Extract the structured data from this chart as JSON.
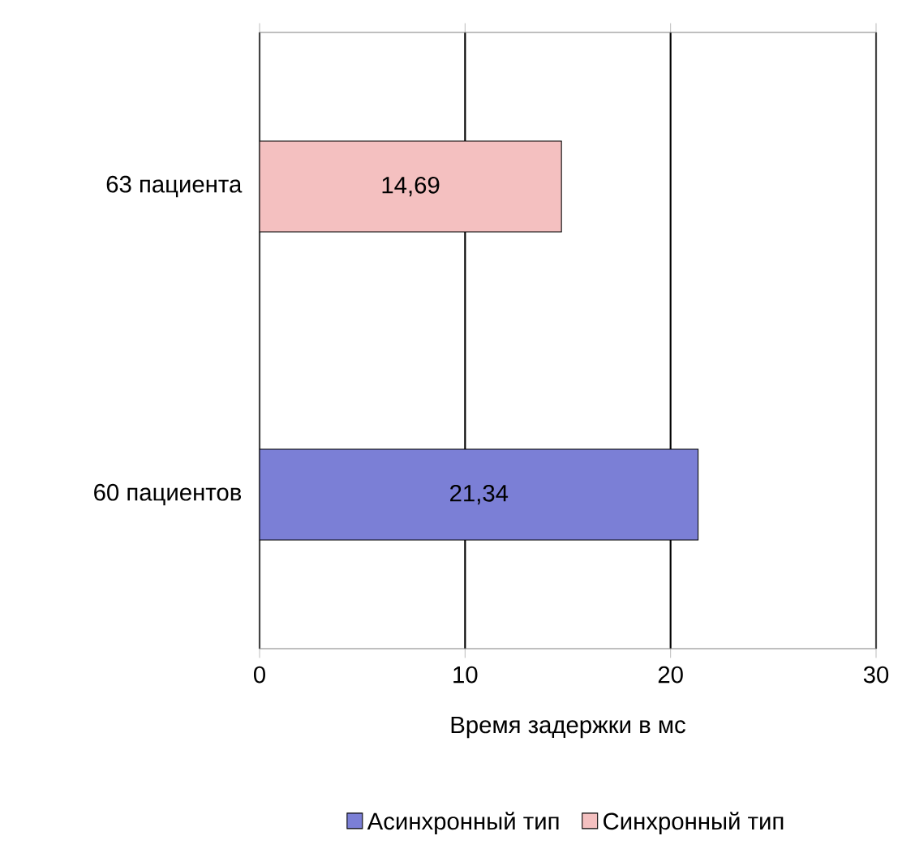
{
  "chart_data": {
    "type": "bar",
    "orientation": "horizontal",
    "xlabel": "Время задержки в мс",
    "categories": [
      "63 пациента",
      "60 пациентов"
    ],
    "series": [
      {
        "name": "Асинхронный тип",
        "color": "#7b7fd6",
        "values": [
          null,
          21.34
        ],
        "value_labels": [
          null,
          "21,34"
        ]
      },
      {
        "name": "Синхронный тип",
        "color": "#f4c0c0",
        "values": [
          14.69,
          null
        ],
        "value_labels": [
          "14,69",
          null
        ]
      }
    ],
    "xlim": [
      0,
      30
    ],
    "xticks": [
      0,
      10,
      20,
      30
    ],
    "grid": "x",
    "legend": "bottom"
  }
}
